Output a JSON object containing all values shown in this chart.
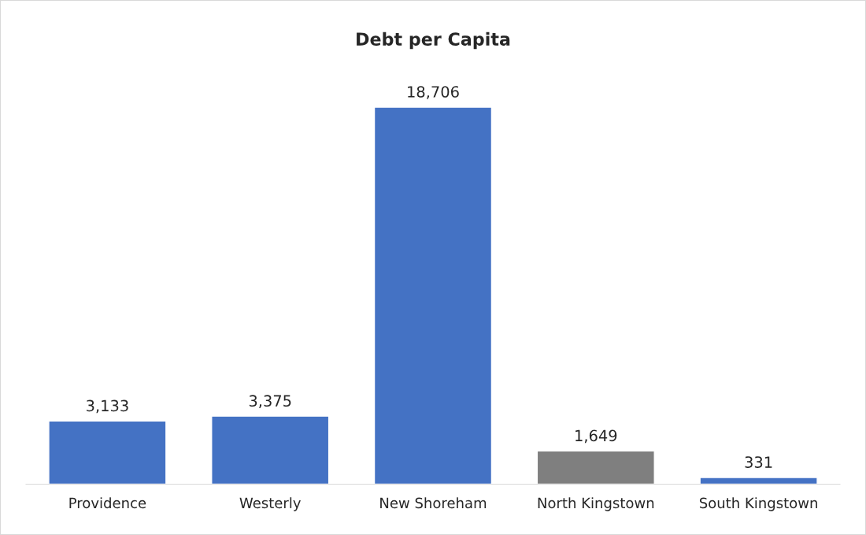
{
  "chart_data": {
    "type": "bar",
    "title": "Debt per Capita",
    "categories": [
      "Providence",
      "Westerly",
      "New Shoreham",
      "North Kingstown",
      "South Kingstown"
    ],
    "values": [
      3133,
      3375,
      18706,
      1649,
      331
    ],
    "colors": [
      "#4472c4",
      "#4472c4",
      "#4472c4",
      "#7f7f7f",
      "#4472c4"
    ],
    "value_labels": [
      "3,133",
      "3,375",
      "18,706",
      "1,649",
      "331"
    ],
    "grid": false,
    "legend": false
  }
}
